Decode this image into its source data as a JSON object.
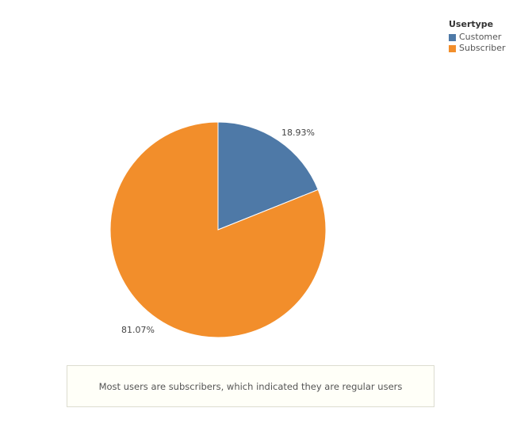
{
  "chart_data": {
    "type": "pie",
    "legend": {
      "title": "Usertype",
      "placement": "top-right"
    },
    "slices": [
      {
        "name": "Customer",
        "value": 18.93,
        "label": "18.93%",
        "color": "#4e79a7"
      },
      {
        "name": "Subscriber",
        "value": 81.07,
        "label": "81.07%",
        "color": "#f28e2b"
      }
    ],
    "annotation": "Most users are subscribers, which indicated they are regular users"
  }
}
